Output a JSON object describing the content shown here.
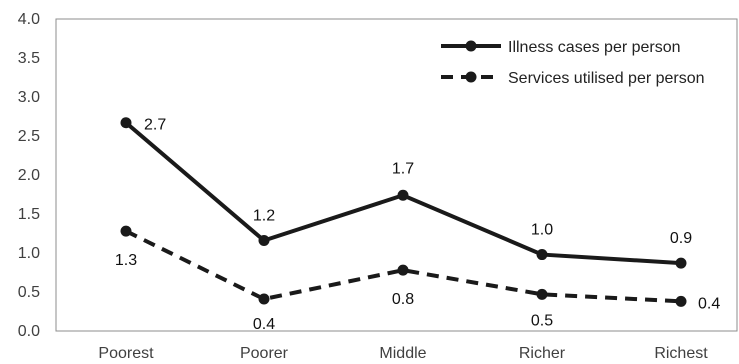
{
  "chart_data": {
    "type": "line",
    "categories": [
      "Poorest",
      "Poorer",
      "Middle",
      "Richer",
      "Richest"
    ],
    "series": [
      {
        "name": "Illness cases per person",
        "values": [
          2.67,
          1.16,
          1.74,
          0.98,
          0.87
        ],
        "data_labels": [
          "2.7",
          "1.2",
          "1.7",
          "1.0",
          "0.9"
        ],
        "style": "solid",
        "color": "#1a1a1a"
      },
      {
        "name": "Services utilised per person",
        "values": [
          1.28,
          0.41,
          0.78,
          0.47,
          0.38
        ],
        "data_labels": [
          "1.3",
          "0.4",
          "0.8",
          "0.5",
          "0.4"
        ],
        "style": "dashed",
        "color": "#1a1a1a"
      }
    ],
    "ylim": [
      0,
      4
    ],
    "yticks": [
      "0.0",
      "0.5",
      "1.0",
      "1.5",
      "2.0",
      "2.5",
      "3.0",
      "3.5",
      "4.0"
    ],
    "xlabel": "",
    "ylabel": "",
    "title": "",
    "grid": false,
    "legend_position": "top-right"
  }
}
